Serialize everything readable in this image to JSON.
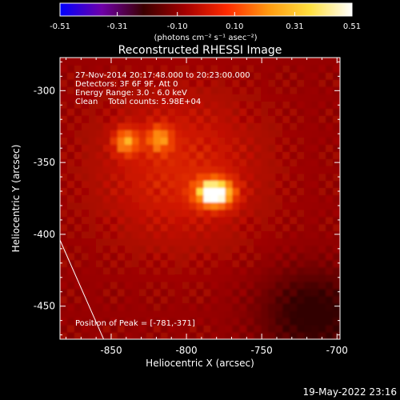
{
  "colorbar": {
    "ticks": [
      -0.51,
      -0.31,
      -0.1,
      0.1,
      0.31,
      0.51
    ],
    "tick_labels": [
      "-0.51",
      "-0.31",
      "-0.10",
      "0.10",
      "0.31",
      "0.51"
    ],
    "unit_label": "(photons cm⁻² s⁻¹ asec⁻²)",
    "colors": [
      "#0000ff",
      "#6e00a8",
      "#3a0000",
      "#a40000",
      "#ff2a00",
      "#ff9a10",
      "#ffe040",
      "#ffffff"
    ]
  },
  "chart_data": {
    "type": "heatmap",
    "title": "Reconstructed RHESSI Image",
    "xlabel": "Heliocentric X (arcsec)",
    "ylabel": "Heliocentric Y (arcsec)",
    "xlim": [
      -884,
      -698
    ],
    "ylim": [
      -473,
      -277
    ],
    "xticks": [
      -850,
      -800,
      -750,
      -700
    ],
    "yticks": [
      -300,
      -350,
      -400,
      -450
    ],
    "xtick_labels": [
      "-850",
      "-800",
      "-750",
      "-700"
    ],
    "ytick_labels": [
      "-300",
      "-350",
      "-400",
      "-450"
    ],
    "sources": [
      {
        "x": -781,
        "y": -371,
        "peak": 0.51
      },
      {
        "x": -840,
        "y": -335,
        "peak": 0.28
      },
      {
        "x": -818,
        "y": -333,
        "peak": 0.24
      }
    ],
    "limb_line": [
      [
        -884,
        -404
      ],
      [
        -855,
        -473
      ]
    ],
    "peak_marker": {
      "x": -781,
      "y": -371
    },
    "annotations": [
      "27-Nov-2014 20:17:48.000 to 20:23:00.000",
      "Detectors: 3F 6F 9F, Att 0",
      "Energy Range: 3.0 - 6.0 keV",
      "Clean    Total counts: 5.98E+04",
      "Position of Peak = [-781,-371]"
    ]
  },
  "footer": {
    "timestamp": "19-May-2022 23:16"
  }
}
